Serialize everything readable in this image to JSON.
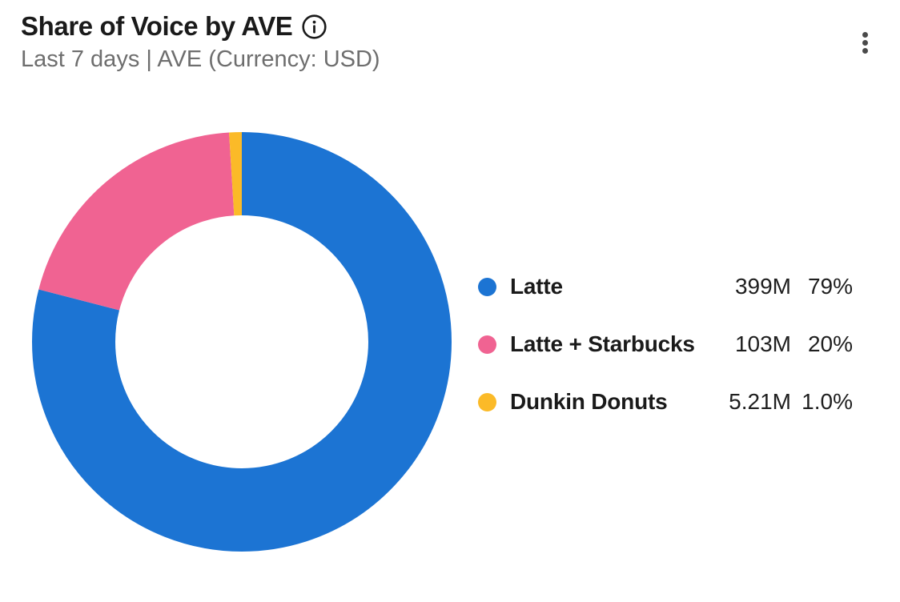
{
  "card": {
    "title": "Share of Voice by AVE",
    "subtitle": "Last 7 days | AVE (Currency: USD)"
  },
  "icons": {
    "info": "info-icon",
    "menu": "kebab-menu-icon"
  },
  "colors": {
    "background": "#ffffff",
    "title_text": "#1a1a1a",
    "subtitle_text": "#6e6e6e",
    "legend_label_text": "#1a1a1a",
    "legend_value_text": "#1f1f1f",
    "menu_icon": "#4a4a4a"
  },
  "chart_data": {
    "type": "pie",
    "variant": "donut",
    "title": "Share of Voice by AVE",
    "subtitle": "Last 7 days | AVE (Currency: USD)",
    "legend_position": "right",
    "start_angle_deg": 0,
    "direction": "clockwise",
    "series": [
      {
        "name": "Latte",
        "value_label": "399M",
        "percent": 79,
        "percent_label": "79%",
        "color": "#1c74d3"
      },
      {
        "name": "Latte + Starbucks",
        "value_label": "103M",
        "percent": 20,
        "percent_label": "20%",
        "color": "#f06392"
      },
      {
        "name": "Dunkin Donuts",
        "value_label": "5.21M",
        "percent": 1.0,
        "percent_label": "1.0%",
        "color": "#fbba28"
      }
    ]
  }
}
